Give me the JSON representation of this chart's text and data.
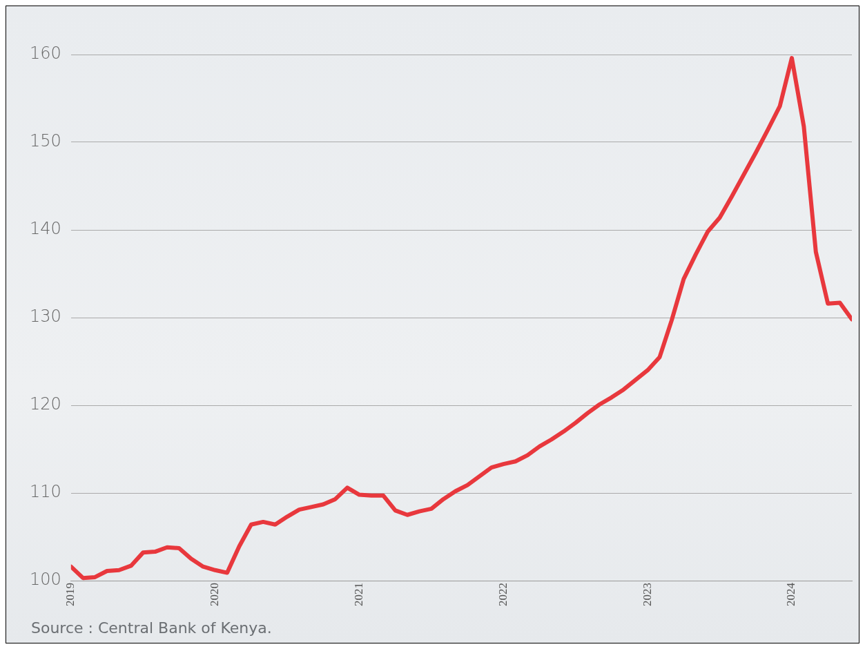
{
  "chart_data": {
    "type": "line",
    "x": [
      "2019-01",
      "2019-02",
      "2019-03",
      "2019-04",
      "2019-05",
      "2019-06",
      "2019-07",
      "2019-08",
      "2019-09",
      "2019-10",
      "2019-11",
      "2019-12",
      "2020-01",
      "2020-02",
      "2020-03",
      "2020-04",
      "2020-05",
      "2020-06",
      "2020-07",
      "2020-08",
      "2020-09",
      "2020-10",
      "2020-11",
      "2020-12",
      "2021-01",
      "2021-02",
      "2021-03",
      "2021-04",
      "2021-05",
      "2021-06",
      "2021-07",
      "2021-08",
      "2021-09",
      "2021-10",
      "2021-11",
      "2021-12",
      "2022-01",
      "2022-02",
      "2022-03",
      "2022-04",
      "2022-05",
      "2022-06",
      "2022-07",
      "2022-08",
      "2022-09",
      "2022-10",
      "2022-11",
      "2022-12",
      "2023-01",
      "2023-02",
      "2023-03",
      "2023-04",
      "2023-05",
      "2023-06",
      "2023-07",
      "2023-08",
      "2023-09",
      "2023-10",
      "2023-11",
      "2023-12",
      "2024-01",
      "2024-02",
      "2024-03",
      "2024-04",
      "2024-05",
      "2024-06"
    ],
    "series": [
      {
        "color": "#e8383d",
        "values": [
          101.6,
          100.3,
          100.4,
          101.1,
          101.2,
          101.7,
          103.2,
          103.3,
          103.8,
          103.7,
          102.5,
          101.6,
          101.2,
          100.9,
          103.9,
          106.4,
          106.7,
          106.4,
          107.3,
          108.1,
          108.4,
          108.7,
          109.3,
          110.6,
          109.8,
          109.7,
          109.7,
          108.0,
          107.5,
          107.9,
          108.2,
          109.3,
          110.2,
          110.9,
          111.9,
          112.9,
          113.3,
          113.6,
          114.3,
          115.3,
          116.1,
          117.0,
          118.0,
          119.1,
          120.1,
          120.9,
          121.8,
          122.9,
          124.0,
          125.5,
          129.7,
          134.4,
          137.2,
          139.8,
          141.4,
          143.8,
          146.3,
          148.8,
          151.4,
          154.1,
          159.6,
          151.8,
          137.5,
          131.6,
          131.7,
          129.8
        ]
      }
    ],
    "xlim": [
      "2019-01",
      "2024-06"
    ],
    "xticks": [
      "2019",
      "2020",
      "2021",
      "2022",
      "2023",
      "2024"
    ],
    "ylim": [
      100,
      160
    ],
    "yticks": [
      100,
      110,
      120,
      130,
      140,
      150,
      160
    ],
    "grid": "y",
    "legend": false,
    "marker": "none",
    "line_style": "solid",
    "annotations": [
      "Source : Central Bank of Kenya."
    ]
  }
}
